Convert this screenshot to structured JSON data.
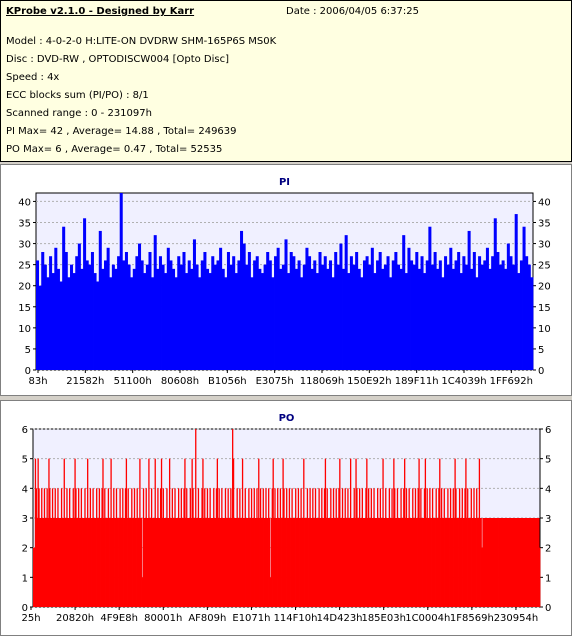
{
  "header": {
    "title": "KProbe v2.1.0 - Designed by Karr",
    "date": "Date : 2006/04/05 6:37:25",
    "lines": [
      "Model : 4-0-2-0 H:LITE-ON DVDRW SHM-165P6S MS0K",
      "Disc : DVD-RW , OPTODISCW004 [Opto Disc]",
      "Speed : 4x",
      "ECC blocks sum (PI/PO) : 8/1",
      "Scanned range : 0 - 231097h",
      "PI Max= 42 , Average= 14.88 , Total= 249639",
      "PO Max= 6 , Average= 0.47 , Total= 52535"
    ]
  },
  "colors": {
    "panel_bg": "#d4d0c8",
    "info_bg": "#ffffe1",
    "plot_bg": "#f0f0ff",
    "pi_color": "#0000ff",
    "po_color": "#ff0000",
    "title_color": "#000080"
  },
  "chart_data": [
    {
      "type": "bar",
      "title": "PI",
      "ylim": [
        0,
        42
      ],
      "yticks": [
        0,
        5,
        10,
        15,
        20,
        25,
        30,
        35,
        40
      ],
      "xtick_labels": [
        "83h",
        "21582h",
        "51100h",
        "80608h",
        "B1056h",
        "E3075h",
        "118069h",
        "150E92h",
        "189F11h",
        "1C4039h",
        "1FF692h"
      ],
      "grid": true,
      "series": [
        {
          "values": [
            26,
            20,
            28,
            25,
            22,
            27,
            23,
            29,
            24,
            21,
            26,
            28,
            22,
            25,
            23,
            27,
            30,
            24,
            22,
            26,
            25,
            28,
            23,
            21,
            27,
            24,
            26,
            29,
            22,
            25,
            24,
            27,
            23,
            26,
            28,
            25,
            22,
            24,
            27,
            30,
            26,
            23,
            25,
            28,
            22,
            26,
            24,
            27,
            25,
            23,
            29,
            26,
            24,
            22,
            27,
            25,
            28,
            23,
            26,
            24,
            27,
            25,
            22,
            26,
            28,
            24,
            23,
            27,
            25,
            26,
            29,
            24,
            22,
            28,
            25,
            27,
            23,
            26,
            24,
            30,
            25,
            28,
            22,
            26,
            27,
            24,
            23,
            25,
            28,
            26,
            22,
            27,
            29,
            24,
            25,
            26,
            23,
            28,
            27,
            24,
            26,
            22,
            25,
            29,
            27,
            24,
            26,
            23,
            28,
            25,
            27,
            24,
            26,
            22,
            28,
            25,
            30,
            24,
            26,
            23,
            27,
            25,
            28,
            24,
            22,
            26,
            27,
            25,
            29,
            23,
            26,
            28,
            24,
            25,
            27,
            22,
            26,
            28,
            25,
            24,
            27,
            23,
            29,
            26,
            25,
            28,
            24,
            27,
            23,
            26,
            30,
            25,
            28,
            24,
            26,
            22,
            27,
            25,
            29,
            24,
            26,
            28,
            23,
            27,
            25,
            26,
            24,
            28,
            22,
            27,
            25,
            26,
            29,
            24,
            27,
            23,
            28,
            25,
            26,
            24,
            30,
            27,
            25,
            28,
            23,
            26,
            24,
            27,
            25,
            22
          ],
          "spikes": [
            {
              "i": 10,
              "v": 34
            },
            {
              "i": 18,
              "v": 36
            },
            {
              "i": 24,
              "v": 33
            },
            {
              "i": 32,
              "v": 42
            },
            {
              "i": 45,
              "v": 32
            },
            {
              "i": 60,
              "v": 31
            },
            {
              "i": 78,
              "v": 33
            },
            {
              "i": 95,
              "v": 31
            },
            {
              "i": 118,
              "v": 32
            },
            {
              "i": 140,
              "v": 32
            },
            {
              "i": 150,
              "v": 34
            },
            {
              "i": 165,
              "v": 33
            },
            {
              "i": 175,
              "v": 36
            },
            {
              "i": 183,
              "v": 37
            },
            {
              "i": 186,
              "v": 34
            }
          ]
        }
      ]
    },
    {
      "type": "bar",
      "title": "PO",
      "ylim": [
        0,
        6
      ],
      "yticks": [
        0,
        1,
        2,
        3,
        4,
        5,
        6
      ],
      "xtick_labels": [
        "25h",
        "20820h",
        "4F9E8h",
        "80001h",
        "AF809h",
        "E1071h",
        "114F10h",
        "14D423h",
        "185E03h",
        "1C0004h",
        "1F8569h",
        "230954h"
      ],
      "grid": true,
      "series": [
        {
          "base": [
            2,
            2,
            2,
            2,
            3,
            3,
            3,
            3,
            3,
            3,
            3,
            3,
            3,
            3,
            3,
            3,
            3,
            3,
            3,
            3,
            3,
            3,
            3,
            3,
            3,
            3,
            3,
            3,
            3,
            3,
            3,
            3,
            3,
            3,
            3,
            3,
            3,
            3,
            3,
            3,
            3,
            3,
            3,
            3,
            3,
            3,
            3,
            3,
            3,
            3,
            3,
            3,
            3,
            3,
            3,
            3,
            3,
            3,
            3,
            3,
            3,
            3,
            3,
            3,
            3,
            3,
            3,
            3,
            3,
            3,
            3,
            3,
            3,
            3,
            3,
            3,
            3,
            3,
            3,
            3,
            3,
            3,
            3,
            3,
            3,
            3,
            3,
            3,
            3,
            3,
            3,
            3,
            3,
            3,
            3,
            3,
            3,
            3,
            3,
            3,
            3,
            3,
            3,
            3,
            3,
            3,
            3,
            3,
            3,
            3,
            3,
            3,
            3,
            3,
            3,
            3,
            3,
            3,
            3,
            3,
            3,
            3,
            3,
            3,
            3,
            3,
            3,
            3,
            3,
            3,
            3,
            3,
            3,
            3,
            3,
            3,
            3,
            3,
            3,
            3,
            3,
            3,
            3,
            3,
            3,
            3,
            3,
            3,
            3,
            3,
            3,
            3,
            3,
            3,
            3,
            3,
            3,
            3,
            3,
            3,
            3,
            3,
            3,
            3,
            3,
            3,
            3,
            3,
            3,
            3,
            3,
            3,
            3,
            3,
            3,
            3,
            3,
            3,
            3,
            3,
            3,
            3,
            3,
            3,
            3,
            3,
            3,
            3,
            3,
            3,
            3,
            3,
            3,
            3,
            3,
            3,
            3,
            3,
            3,
            3,
            3,
            3,
            3,
            3,
            3,
            3,
            3,
            3,
            3,
            3,
            3,
            3,
            3,
            3,
            3,
            3,
            3,
            3,
            3,
            3,
            3,
            3,
            3,
            3,
            3,
            3,
            3,
            3,
            3,
            3,
            3,
            3,
            3,
            3,
            3,
            3,
            3,
            3,
            3,
            3,
            3,
            3,
            3,
            3,
            3,
            3,
            3,
            3,
            3,
            3,
            3,
            3,
            3,
            3,
            3,
            3,
            3,
            3,
            3,
            3,
            3,
            3,
            3,
            3,
            3,
            3,
            3,
            3,
            3,
            3,
            3,
            3,
            3,
            3,
            3,
            3,
            3,
            3,
            3,
            3,
            3,
            3,
            3,
            3,
            3,
            3,
            3,
            3,
            3,
            3,
            3,
            3,
            3,
            3,
            3,
            3,
            3,
            3,
            3,
            3,
            3,
            3,
            3,
            3,
            3,
            3,
            3,
            3,
            3,
            3,
            3,
            3,
            3,
            3,
            3,
            3,
            3,
            3,
            3,
            3,
            3,
            3,
            3,
            3,
            3,
            3,
            3,
            3,
            3,
            3,
            3,
            3,
            3,
            3,
            3,
            3,
            3,
            3,
            3,
            3,
            3,
            3,
            3,
            3,
            3,
            3,
            3,
            3,
            3,
            3,
            3,
            3,
            3,
            3,
            3,
            3,
            3,
            3,
            3,
            3,
            3,
            3,
            3,
            3,
            3,
            3,
            3,
            3,
            3,
            3,
            3,
            3,
            3,
            3,
            3,
            3,
            3,
            3,
            3,
            3,
            3,
            3,
            3,
            3,
            3,
            3,
            3,
            3,
            3,
            3,
            3,
            3,
            3,
            3,
            3,
            3,
            3,
            3,
            3,
            3,
            3,
            3,
            3,
            3,
            3,
            3,
            3,
            3,
            3,
            3,
            3,
            3,
            3,
            3,
            3,
            3,
            3,
            3,
            3,
            3,
            3,
            3,
            3,
            3,
            3,
            3,
            3,
            3,
            3,
            3,
            3,
            3,
            3,
            3,
            3,
            3,
            3,
            3,
            3,
            3,
            3,
            3,
            3,
            3,
            3,
            3,
            3,
            3,
            3,
            3,
            3,
            3,
            3,
            3,
            3,
            3,
            3,
            3,
            3,
            3,
            3,
            3,
            3,
            3,
            3,
            3,
            3,
            3,
            3,
            3,
            3,
            3,
            3,
            3,
            3,
            3,
            3,
            3,
            3,
            3,
            3,
            3,
            3,
            3,
            3,
            3,
            3,
            3,
            3,
            3,
            3,
            3,
            3,
            3,
            3,
            3,
            3,
            3,
            3,
            3,
            3,
            3,
            3,
            3,
            3,
            3,
            3,
            3,
            3,
            3,
            3,
            3,
            3,
            3,
            3,
            3,
            3,
            3,
            3,
            3,
            3,
            3,
            3,
            3,
            3,
            3,
            3,
            3,
            3,
            3,
            3,
            3,
            3,
            3,
            3,
            3,
            3,
            3,
            3,
            3,
            3,
            3,
            3,
            3,
            3,
            3,
            3,
            3,
            3,
            3,
            3,
            3,
            3,
            3,
            3,
            3,
            3,
            3,
            3,
            3,
            3,
            3,
            2
          ],
          "fours": [
            3,
            6,
            9,
            12,
            15,
            18,
            21,
            24,
            27,
            31,
            34,
            37,
            40,
            44,
            47,
            50,
            53,
            57,
            60,
            63,
            66,
            70,
            73,
            76,
            79,
            83,
            86,
            89,
            92,
            96,
            99,
            102,
            105,
            109,
            112,
            115,
            118,
            122,
            125,
            128,
            131,
            135,
            138,
            141,
            144,
            148,
            151,
            154,
            157,
            161,
            164,
            167,
            170,
            174,
            177,
            180,
            183,
            187,
            190,
            193,
            196,
            200,
            203,
            206,
            209,
            213,
            216,
            219,
            222,
            226,
            229,
            232,
            235,
            239,
            242,
            245,
            248,
            252,
            255,
            258,
            261,
            265,
            268,
            271,
            274,
            278,
            281,
            284,
            287,
            291,
            294,
            297,
            300,
            304,
            307,
            310,
            313,
            317,
            320,
            323,
            326,
            330,
            333,
            336,
            339,
            343,
            346,
            349,
            352,
            356,
            359,
            362,
            365,
            369,
            372,
            375,
            378,
            382,
            385,
            388,
            391,
            395,
            398,
            401,
            404,
            408,
            411,
            414,
            417,
            421,
            424,
            427,
            430,
            434,
            437,
            440,
            443,
            447,
            450,
            453,
            456,
            460,
            463,
            466,
            469,
            473,
            476,
            479,
            482,
            486,
            489,
            492,
            495
          ],
          "fives": [
            2,
            5,
            17,
            34,
            46,
            60,
            77,
            86,
            103,
            118,
            128,
            135,
            142,
            151,
            168,
            176,
            188,
            204,
            222,
            232,
            250,
            266,
            277,
            300,
            324,
            340,
            352,
            358,
            370,
            388,
            400,
            412,
            428,
            435,
            451,
            468,
            480,
            495
          ],
          "sixes": [
            180,
            221
          ],
          "dips": [
            {
              "i": 121,
              "v": 1
            },
            {
              "i": 263,
              "v": 1
            },
            {
              "i": 498,
              "v": 2
            }
          ]
        }
      ]
    }
  ]
}
